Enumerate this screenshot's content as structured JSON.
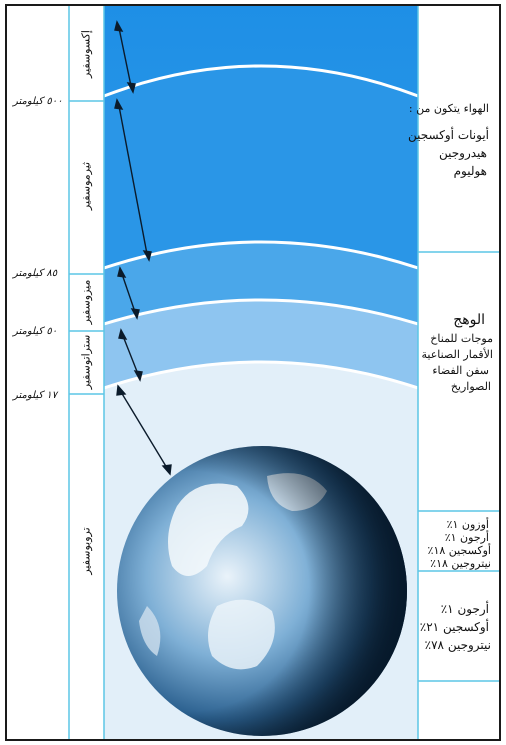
{
  "altitude_labels": [
    "٥٠٠ كيلومتر",
    "٨٥ كيلومتر",
    "٥٠ كيلومتر",
    "١٧ كيلومتر"
  ],
  "layer_names": {
    "exosphere": "إكسوسفير",
    "thermosphere": "ثيرموسفير",
    "mesosphere": "ميزوسفير",
    "stratosphere": "ستراتوسفير",
    "troposphere": "تروبوسفير"
  },
  "exosphere_panel": {
    "heading": "الهواء يتكون من :",
    "lines": [
      "أيونات أوكسجين",
      "هيدروجين",
      "هوليوم"
    ]
  },
  "middle_panel": {
    "heading": "الوهج",
    "lines": [
      "موجات للمناخ",
      "الأقمار الصناعية",
      "سفن الفضاء",
      "الصواريخ"
    ]
  },
  "stratosphere_panel": {
    "lines": [
      "أوزون ١٪",
      "أرجون ١٪",
      "أوكسجين ١٨٪",
      "نيتروجين ١٨٪"
    ]
  },
  "troposphere_panel": {
    "lines": [
      "أرجون ١٪",
      "أوكسجين ٢١٪",
      "نيتروجين ٧٨٪"
    ]
  },
  "colors": {
    "exosphere": "#1e8fe6",
    "thermosphere": "#2e99e8",
    "mesosphere": "#5aafec",
    "stratosphere": "#a9d2f2",
    "troposphere": "#e4f0fa",
    "earth_ocean": "#2b6ea6",
    "earth_cloud": "#e8f1f8",
    "divider": "#5cc6e6"
  }
}
